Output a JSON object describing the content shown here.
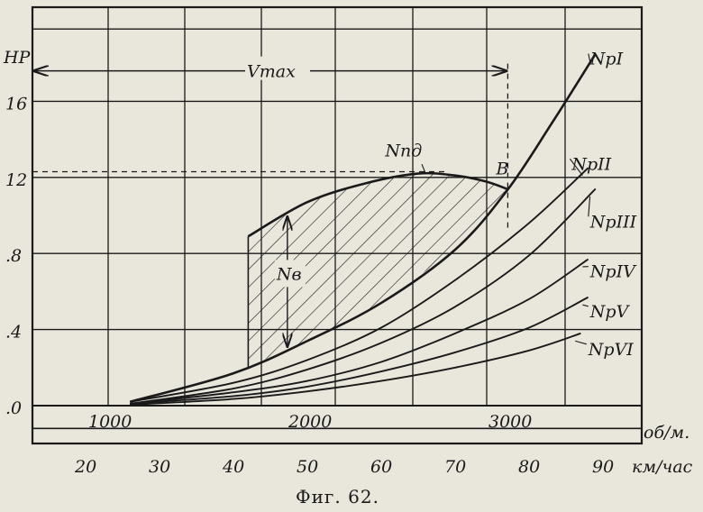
{
  "chart_data": {
    "type": "line",
    "caption": "Фиг. 62.",
    "ylabel": "HP",
    "xlabel_rpm": "об/м.",
    "xlabel_speed": "км/час",
    "yticks": [
      ".0",
      ".4",
      ".8",
      "12",
      "16"
    ],
    "ytick_values": [
      0,
      4,
      8,
      12,
      16
    ],
    "rpm_ticks": [
      {
        "label": "1000",
        "value": 1000
      },
      {
        "label": "2000",
        "value": 2000
      },
      {
        "label": "3000",
        "value": 3000
      }
    ],
    "speed_ticks": [
      "20",
      "30",
      "40",
      "50",
      "60",
      "70",
      "80",
      "90"
    ],
    "speed_values": [
      20,
      30,
      40,
      50,
      60,
      70,
      80,
      90
    ],
    "xlim_speed": [
      15,
      92
    ],
    "ylim": [
      -1.2,
      20.6
    ],
    "annotations": {
      "vmax": "Vmax",
      "point_b": "B",
      "engine_power": "Nпд",
      "power_reserve": "Nв"
    },
    "point_b": {
      "x": 77,
      "y": 11.5
    },
    "series": [
      {
        "name": "Nпд",
        "x": [
          42,
          50,
          58,
          65,
          70,
          74,
          77
        ],
        "y": [
          8.9,
          10.7,
          11.7,
          12.2,
          12.1,
          11.8,
          11.4
        ]
      },
      {
        "name": "NpI",
        "x": [
          26,
          40,
          50,
          60,
          70,
          77,
          83,
          89
        ],
        "y": [
          0.2,
          1.7,
          3.4,
          5.4,
          8.2,
          11.3,
          14.8,
          18.5
        ]
      },
      {
        "name": "NpII",
        "x": [
          26,
          40,
          50,
          60,
          70,
          80,
          88
        ],
        "y": [
          0.2,
          1.2,
          2.4,
          4.1,
          6.6,
          9.6,
          12.5
        ]
      },
      {
        "name": "NpIII",
        "x": [
          26,
          40,
          50,
          60,
          70,
          80,
          89
        ],
        "y": [
          0.1,
          0.9,
          1.9,
          3.3,
          5.2,
          7.9,
          11.4
        ]
      },
      {
        "name": "NpIV",
        "x": [
          26,
          40,
          50,
          60,
          70,
          80,
          88
        ],
        "y": [
          0.1,
          0.7,
          1.3,
          2.3,
          3.8,
          5.6,
          7.7
        ]
      },
      {
        "name": "NpV",
        "x": [
          26,
          40,
          50,
          60,
          70,
          80,
          88
        ],
        "y": [
          0.1,
          0.5,
          1.0,
          1.8,
          2.8,
          4.1,
          5.7
        ]
      },
      {
        "name": "NpVI",
        "x": [
          26,
          40,
          50,
          60,
          70,
          80,
          87
        ],
        "y": [
          0.05,
          0.35,
          0.75,
          1.3,
          2.0,
          2.9,
          3.8
        ]
      }
    ],
    "series_labels": [
      "NpI",
      "NpII",
      "NpIII",
      "NpIV",
      "NpV",
      "NpVI"
    ],
    "grid": true,
    "hatched_region": "between Nпд and NpI",
    "colors": {
      "ink": "#1a1a1a",
      "paper": "#e9e6dc"
    }
  }
}
